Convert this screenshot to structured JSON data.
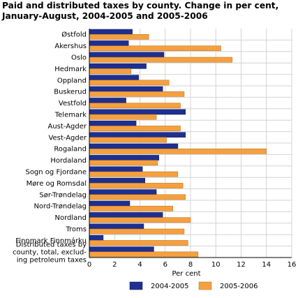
{
  "chart_data": {
    "type": "bar",
    "orientation": "horizontal",
    "title": "Paid and distributed taxes by county. Change in per cent, January-August, 2004-2005 and 2005-2006",
    "xlabel": "Per cent",
    "ylabel": "",
    "xlim": [
      0,
      16
    ],
    "xticks": [
      "0",
      "2",
      "4",
      "6",
      "8",
      "10",
      "12",
      "14",
      "16"
    ],
    "grid": true,
    "legend_position": "bottom",
    "categories": [
      [
        "Østfold"
      ],
      [
        "Akershus"
      ],
      [
        "Oslo"
      ],
      [
        "Hedmark"
      ],
      [
        "Oppland"
      ],
      [
        "Buskerud"
      ],
      [
        "Vestfold"
      ],
      [
        "Telemark"
      ],
      [
        "Aust-Agder"
      ],
      [
        "Vest-Agder"
      ],
      [
        "Rogaland"
      ],
      [
        "Hordaland"
      ],
      [
        "Sogn og Fjordane"
      ],
      [
        "Møre og Romsdal"
      ],
      [
        "Sør-Trøndelag"
      ],
      [
        "Nord-Trøndelag"
      ],
      [
        "Nordland"
      ],
      [
        "Troms"
      ],
      [
        "Finnmark Finnmárku"
      ],
      [
        "Distributed taxes by",
        "county, total, exclud-",
        "ing petroleum taxes"
      ]
    ],
    "series": [
      {
        "name": "2004-2005",
        "color": "#1f2f8f",
        "values": [
          3.4,
          3.1,
          5.9,
          4.5,
          3.9,
          5.8,
          2.9,
          7.6,
          3.7,
          7.6,
          7.0,
          5.5,
          4.2,
          4.4,
          5.3,
          3.2,
          5.8,
          4.3,
          1.1,
          5.1
        ]
      },
      {
        "name": "2005-2006",
        "color": "#f5a040",
        "values": [
          4.7,
          10.4,
          11.3,
          3.3,
          6.3,
          7.5,
          7.2,
          5.3,
          7.2,
          6.1,
          14.0,
          5.4,
          7.0,
          7.4,
          7.6,
          6.6,
          8.0,
          7.5,
          7.8,
          8.6
        ]
      }
    ]
  }
}
